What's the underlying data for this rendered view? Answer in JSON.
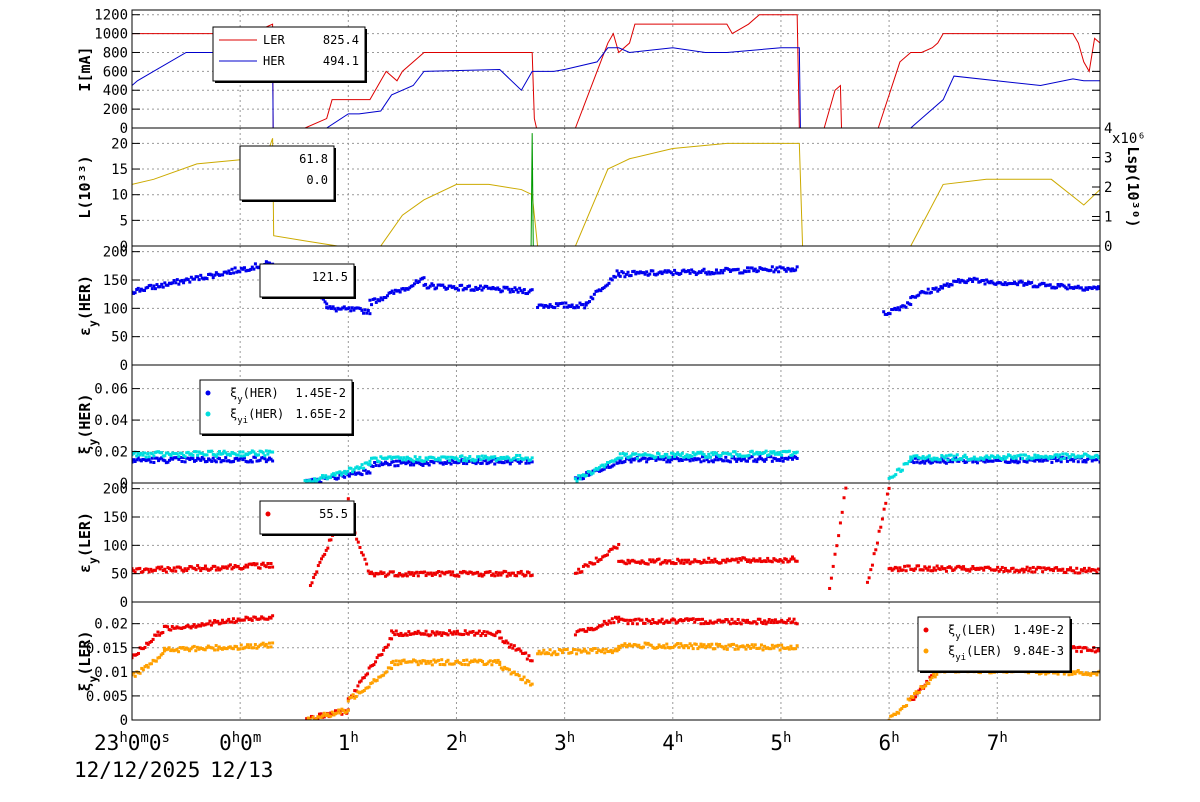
{
  "chart_data": [
    {
      "type": "line",
      "ylabel": "I[mA]",
      "ylim": [
        0,
        1250
      ],
      "yticks": [
        0,
        200,
        400,
        600,
        800,
        1000,
        1200
      ],
      "grid": true,
      "legend": {
        "placement": "top-left",
        "entries": [
          {
            "name": "LER",
            "value": "825.4",
            "color": "#dd0000"
          },
          {
            "name": "HER",
            "value": "494.1",
            "color": "#0000cc"
          }
        ]
      },
      "series": [
        {
          "name": "LER",
          "color": "#dd0000",
          "x": [
            -1.0,
            -0.95,
            -0.6,
            -0.2,
            0.1,
            0.3,
            0.305,
            0.6,
            0.8,
            0.85,
            1.0,
            1.2,
            1.3,
            1.35,
            1.45,
            1.5,
            1.7,
            2.7,
            2.72,
            2.74,
            3.1,
            3.3,
            3.4,
            3.45,
            3.5,
            3.6,
            3.65,
            4.0,
            4.5,
            4.55,
            4.7,
            4.8,
            5.15,
            5.17,
            5.4,
            5.5,
            5.55,
            5.56,
            5.7,
            5.72,
            5.9,
            6.1,
            6.2,
            6.3,
            6.4,
            6.45,
            6.5,
            7.6,
            7.7,
            7.75,
            7.8,
            7.85,
            7.9,
            7.95
          ],
          "y": [
            1000,
            1000,
            1000,
            1000,
            1000,
            1100,
            0,
            0,
            100,
            300,
            300,
            300,
            500,
            600,
            500,
            600,
            800,
            800,
            100,
            0,
            0,
            600,
            900,
            1000,
            800,
            900,
            1100,
            1100,
            1100,
            1000,
            1100,
            1200,
            1200,
            0,
            0,
            400,
            450,
            0,
            0,
            0,
            0,
            700,
            800,
            800,
            850,
            900,
            1000,
            1000,
            1000,
            900,
            700,
            600,
            950,
            900
          ]
        },
        {
          "name": "HER",
          "color": "#0000cc",
          "x": [
            -1.0,
            -0.95,
            -0.8,
            -0.5,
            0.2,
            0.3,
            0.305,
            0.6,
            0.8,
            1.0,
            1.1,
            1.3,
            1.4,
            1.6,
            1.7,
            2.4,
            2.6,
            2.7,
            2.9,
            3.0,
            3.3,
            3.4,
            3.5,
            3.6,
            4.0,
            4.3,
            4.5,
            5.0,
            5.17,
            5.18,
            6.1,
            6.2,
            6.3,
            6.5,
            6.6,
            7.4,
            7.7,
            7.8,
            7.95
          ],
          "y": [
            450,
            500,
            600,
            800,
            800,
            820,
            0,
            0,
            0,
            150,
            150,
            180,
            350,
            450,
            600,
            620,
            400,
            600,
            600,
            620,
            700,
            850,
            850,
            800,
            850,
            800,
            800,
            850,
            850,
            0,
            0,
            0,
            100,
            300,
            550,
            450,
            520,
            500,
            500
          ]
        }
      ]
    },
    {
      "type": "line",
      "ylabel": "L(10³³)",
      "y2label": "Lsp(10³⁰)",
      "y2multiplier": "x10⁶",
      "ylim": [
        0,
        23
      ],
      "y2lim": [
        0,
        4
      ],
      "yticks": [
        0,
        5,
        10,
        15,
        20
      ],
      "y2ticks": [
        0,
        1,
        2,
        3,
        4
      ],
      "grid": true,
      "legend": {
        "placement": "top-left",
        "entries": [
          {
            "value": "61.8"
          },
          {
            "value": "0.0"
          }
        ]
      },
      "series": [
        {
          "name": "L",
          "color": "#ccaa00",
          "x": [
            -1.0,
            -0.8,
            -0.4,
            0.1,
            0.25,
            0.3,
            0.31,
            0.6,
            0.9,
            1.2,
            1.3,
            1.5,
            1.7,
            2.0,
            2.3,
            2.6,
            2.7,
            2.75,
            2.8,
            3.0,
            3.1,
            3.3,
            3.4,
            3.5,
            3.6,
            4.0,
            4.5,
            5.0,
            5.17,
            5.2,
            6.1,
            6.2,
            6.3,
            6.5,
            6.9,
            7.5,
            7.8,
            7.95
          ],
          "y": [
            12,
            13,
            16,
            17,
            18,
            21,
            2,
            1,
            0,
            0,
            0,
            6,
            9,
            12,
            12,
            11,
            10,
            0,
            0,
            0,
            0,
            10,
            15,
            16,
            17,
            19,
            20,
            20,
            20,
            0,
            0,
            0,
            4,
            12,
            13,
            13,
            8,
            11
          ]
        },
        {
          "name": "Lsp",
          "color": "#009900",
          "x": [
            2.69,
            2.7,
            2.71
          ],
          "y": [
            0,
            22,
            0
          ]
        }
      ]
    },
    {
      "type": "scatter",
      "ylabel": "εy(HER)",
      "ylim": [
        0,
        210
      ],
      "yticks": [
        0,
        50,
        100,
        150,
        200
      ],
      "grid": true,
      "legend": {
        "placement": "top-left",
        "entries": [
          {
            "value": "121.5"
          }
        ]
      },
      "series": [
        {
          "name": "εy(HER)",
          "color": "#0000ee",
          "segments": [
            {
              "x0": -1.0,
              "x1": 0.3,
              "y0": 130,
              "y1": 180
            },
            {
              "x0": 0.65,
              "x1": 0.8,
              "y0": 150,
              "y1": 110
            },
            {
              "x0": 0.8,
              "x1": 1.2,
              "y0": 100,
              "y1": 95
            },
            {
              "x0": 1.2,
              "x1": 1.7,
              "y0": 110,
              "y1": 150
            },
            {
              "x0": 1.7,
              "x1": 2.7,
              "y0": 140,
              "y1": 130
            },
            {
              "x0": 2.75,
              "x1": 3.2,
              "y0": 105,
              "y1": 105
            },
            {
              "x0": 3.2,
              "x1": 3.5,
              "y0": 110,
              "y1": 165
            },
            {
              "x0": 3.5,
              "x1": 5.15,
              "y0": 160,
              "y1": 170
            },
            {
              "x0": 5.95,
              "x1": 6.2,
              "y0": 90,
              "y1": 110
            },
            {
              "x0": 6.2,
              "x1": 6.7,
              "y0": 120,
              "y1": 150
            },
            {
              "x0": 6.7,
              "x1": 7.95,
              "y0": 150,
              "y1": 135
            }
          ]
        }
      ]
    },
    {
      "type": "scatter",
      "ylabel": "ξy(HER)",
      "ylim": [
        0,
        0.075
      ],
      "yticks": [
        0,
        0.02,
        0.04,
        0.06
      ],
      "yticklabels": [
        "0",
        "0.02",
        "0.04",
        "0.06"
      ],
      "grid": true,
      "legend": {
        "placement": "top-left",
        "entries": [
          {
            "name": "ξy(HER)",
            "value": "1.45E-2",
            "color": "#0000ee"
          },
          {
            "name": "ξyi(HER)",
            "value": "1.65E-2",
            "color": "#00dddd"
          }
        ]
      },
      "series": [
        {
          "name": "ξy(HER)",
          "color": "#0000ee",
          "segments": [
            {
              "x0": -1.0,
              "x1": 0.3,
              "y0": 0.0145,
              "y1": 0.015
            },
            {
              "x0": 0.6,
              "x1": 1.2,
              "y0": 0.0,
              "y1": 0.008
            },
            {
              "x0": 1.2,
              "x1": 2.7,
              "y0": 0.012,
              "y1": 0.014
            },
            {
              "x0": 3.1,
              "x1": 3.5,
              "y0": 0.002,
              "y1": 0.014
            },
            {
              "x0": 3.5,
              "x1": 5.15,
              "y0": 0.0145,
              "y1": 0.0155
            },
            {
              "x0": 6.2,
              "x1": 7.95,
              "y0": 0.014,
              "y1": 0.015
            }
          ]
        },
        {
          "name": "ξyi(HER)",
          "color": "#00dddd",
          "segments": [
            {
              "x0": -1.0,
              "x1": 0.3,
              "y0": 0.018,
              "y1": 0.019
            },
            {
              "x0": 0.6,
              "x1": 1.2,
              "y0": 0.0,
              "y1": 0.012
            },
            {
              "x0": 1.2,
              "x1": 2.7,
              "y0": 0.015,
              "y1": 0.016
            },
            {
              "x0": 3.1,
              "x1": 3.5,
              "y0": 0.002,
              "y1": 0.016
            },
            {
              "x0": 3.5,
              "x1": 5.15,
              "y0": 0.017,
              "y1": 0.019
            },
            {
              "x0": 6.0,
              "x1": 6.2,
              "y0": 0.003,
              "y1": 0.014
            },
            {
              "x0": 6.2,
              "x1": 7.95,
              "y0": 0.016,
              "y1": 0.017
            }
          ]
        }
      ]
    },
    {
      "type": "scatter",
      "ylabel": "εy(LER)",
      "ylim": [
        0,
        210
      ],
      "yticks": [
        0,
        50,
        100,
        150,
        200
      ],
      "grid": true,
      "legend": {
        "placement": "top-left",
        "entries": [
          {
            "value": "55.5",
            "color": "#ee0000"
          }
        ]
      },
      "series": [
        {
          "name": "εy(LER)",
          "color": "#ee0000",
          "segments": [
            {
              "x0": -1.0,
              "x1": 0.3,
              "y0": 55,
              "y1": 65
            },
            {
              "x0": 0.65,
              "x1": 1.0,
              "y0": 30,
              "y1": 180
            },
            {
              "x0": 1.0,
              "x1": 1.2,
              "y0": 150,
              "y1": 50
            },
            {
              "x0": 1.2,
              "x1": 2.7,
              "y0": 50,
              "y1": 50
            },
            {
              "x0": 3.1,
              "x1": 3.5,
              "y0": 50,
              "y1": 100
            },
            {
              "x0": 3.5,
              "x1": 5.15,
              "y0": 70,
              "y1": 75
            },
            {
              "x0": 5.45,
              "x1": 5.6,
              "y0": 20,
              "y1": 200
            },
            {
              "x0": 5.8,
              "x1": 6.0,
              "y0": 30,
              "y1": 200
            },
            {
              "x0": 6.0,
              "x1": 7.95,
              "y0": 60,
              "y1": 55
            }
          ]
        }
      ]
    },
    {
      "type": "scatter",
      "ylabel": "ξy(LER)",
      "ylim": [
        0,
        0.0245
      ],
      "yticks": [
        0,
        0.005,
        0.01,
        0.015,
        0.02
      ],
      "yticklabels": [
        "0",
        "0.005",
        "0.01",
        "0.015",
        "0.02"
      ],
      "grid": true,
      "legend": {
        "placement": "top-right",
        "entries": [
          {
            "name": "ξy(LER)",
            "value": "1.49E-2",
            "color": "#ee0000"
          },
          {
            "name": "ξyi(LER)",
            "value": "9.84E-3",
            "color": "#ffa000"
          }
        ]
      },
      "series": [
        {
          "name": "ξy(LER)",
          "color": "#ee0000",
          "segments": [
            {
              "x0": -1.0,
              "x1": -0.7,
              "y0": 0.013,
              "y1": 0.019
            },
            {
              "x0": -0.7,
              "x1": 0.3,
              "y0": 0.019,
              "y1": 0.0215
            },
            {
              "x0": 0.6,
              "x1": 1.0,
              "y0": 0.0,
              "y1": 0.002
            },
            {
              "x0": 1.0,
              "x1": 1.4,
              "y0": 0.004,
              "y1": 0.017
            },
            {
              "x0": 1.4,
              "x1": 2.4,
              "y0": 0.018,
              "y1": 0.018
            },
            {
              "x0": 2.4,
              "x1": 2.7,
              "y0": 0.017,
              "y1": 0.0125
            },
            {
              "x0": 3.1,
              "x1": 3.5,
              "y0": 0.018,
              "y1": 0.021
            },
            {
              "x0": 3.5,
              "x1": 5.15,
              "y0": 0.0205,
              "y1": 0.0205
            },
            {
              "x0": 6.2,
              "x1": 6.6,
              "y0": 0.004,
              "y1": 0.014
            },
            {
              "x0": 6.6,
              "x1": 7.95,
              "y0": 0.0155,
              "y1": 0.0145
            }
          ]
        },
        {
          "name": "ξyi(LER)",
          "color": "#ffa000",
          "segments": [
            {
              "x0": -1.0,
              "x1": -0.7,
              "y0": 0.009,
              "y1": 0.014
            },
            {
              "x0": -0.7,
              "x1": 0.3,
              "y0": 0.0145,
              "y1": 0.0155
            },
            {
              "x0": 0.6,
              "x1": 1.0,
              "y0": 0.0,
              "y1": 0.002
            },
            {
              "x0": 1.0,
              "x1": 1.4,
              "y0": 0.004,
              "y1": 0.011
            },
            {
              "x0": 1.4,
              "x1": 2.4,
              "y0": 0.012,
              "y1": 0.012
            },
            {
              "x0": 2.4,
              "x1": 2.7,
              "y0": 0.011,
              "y1": 0.0075
            },
            {
              "x0": 2.75,
              "x1": 3.5,
              "y0": 0.014,
              "y1": 0.0145
            },
            {
              "x0": 3.5,
              "x1": 5.15,
              "y0": 0.0155,
              "y1": 0.015
            },
            {
              "x0": 6.0,
              "x1": 6.5,
              "y0": 0.0,
              "y1": 0.011
            },
            {
              "x0": 6.5,
              "x1": 7.95,
              "y0": 0.0105,
              "y1": 0.0098
            }
          ]
        }
      ]
    }
  ],
  "x_axis": {
    "range_hours": [
      -1.0,
      7.95
    ],
    "ticks": [
      {
        "x": -1.0,
        "base": "23",
        "sup": "h",
        "rest": "0",
        "sup2": "m",
        "rest2": "0",
        "sup3": "s"
      },
      {
        "x": 0.0,
        "base": "0",
        "sup": "h",
        "rest": "0",
        "sup2": "m"
      },
      {
        "x": 1.0,
        "base": "1",
        "sup": "h"
      },
      {
        "x": 2.0,
        "base": "2",
        "sup": "h"
      },
      {
        "x": 3.0,
        "base": "3",
        "sup": "h"
      },
      {
        "x": 4.0,
        "base": "4",
        "sup": "h"
      },
      {
        "x": 5.0,
        "base": "5",
        "sup": "h"
      },
      {
        "x": 6.0,
        "base": "6",
        "sup": "h"
      },
      {
        "x": 7.0,
        "base": "7",
        "sup": "h"
      }
    ],
    "date_labels": [
      "12/12/2025",
      "12/13"
    ]
  }
}
